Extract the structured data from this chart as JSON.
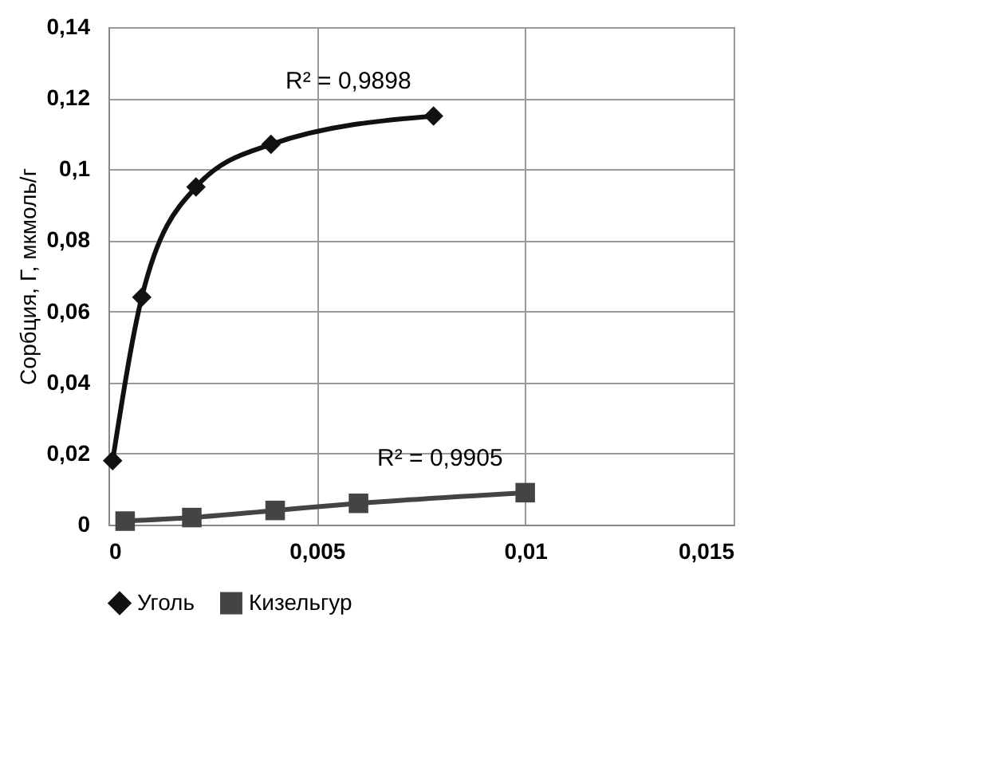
{
  "chart_data": {
    "type": "line",
    "ylabel": "Сорбция, Г, мкмоль/г",
    "xlim": [
      0,
      0.015
    ],
    "xticks": [
      {
        "value": 0,
        "label": "0"
      },
      {
        "value": 0.005,
        "label": "0,005"
      },
      {
        "value": 0.01,
        "label": "0,01"
      },
      {
        "value": 0.015,
        "label": "0,015"
      }
    ],
    "ylim": [
      0,
      0.14
    ],
    "yticks": [
      {
        "value": 0,
        "label": "0"
      },
      {
        "value": 0.02,
        "label": "0,02"
      },
      {
        "value": 0.04,
        "label": "0,04"
      },
      {
        "value": 0.06,
        "label": "0,06"
      },
      {
        "value": 0.08,
        "label": "0,08"
      },
      {
        "value": 0.1,
        "label": "0,1"
      },
      {
        "value": 0.12,
        "label": "0,12"
      },
      {
        "value": 0.14,
        "label": "0,14"
      }
    ],
    "grid": true,
    "legend": "bottom",
    "line_style": "solid",
    "series": [
      {
        "name": "Уголь",
        "color": "#111111",
        "marker": "diamond",
        "x": [
          0.0001,
          0.0008,
          0.0021,
          0.0039,
          0.0078
        ],
        "values": [
          0.018,
          0.064,
          0.095,
          0.107,
          0.115
        ]
      },
      {
        "name": "Кизельгур",
        "color": "#444444",
        "marker": "square",
        "x": [
          0.0004,
          0.002,
          0.004,
          0.006,
          0.01
        ],
        "values": [
          0.001,
          0.002,
          0.004,
          0.006,
          0.009
        ]
      }
    ],
    "annotations": [
      "R² = 0,9898",
      "R² = 0,9905"
    ]
  }
}
